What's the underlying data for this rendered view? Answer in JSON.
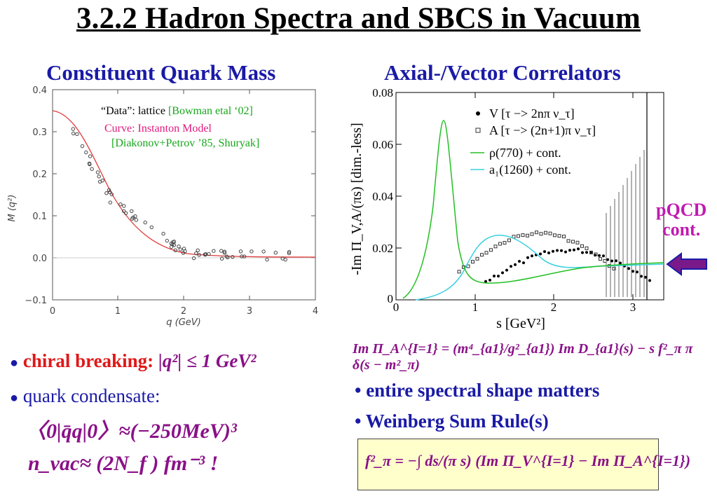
{
  "slide": {
    "title": "3.2.2 Hadron Spectra and SBCS in Vacuum",
    "left_heading": "Constituent Quark Mass",
    "right_heading": "Axial-/Vector Correlators"
  },
  "left_plot": {
    "note_data_prefix": "“Data”: lattice ",
    "note_data_ref": "[Bowman etal ‘02]",
    "note_curve": "Curve: Instanton Model",
    "note_curve_ref": "[Diakonov+Petrov ’85, Shuryak]",
    "ylabel": "M (q²)",
    "xlabel": "q (GeV)",
    "yticks": [
      "0.4",
      "0.3",
      "0.2",
      "0.1",
      "0.0",
      "−0.1"
    ],
    "xticks": [
      "0",
      "1",
      "2",
      "3",
      "4"
    ],
    "colors": {
      "curve": "#e03a3a",
      "points": "#444444"
    }
  },
  "right_plot": {
    "ylabel": "-Im Π_V,A/(πs) [dim.-less]",
    "xlabel": "s [GeV²]",
    "yticks": [
      "0.08",
      "0.06",
      "0.04",
      "0.02",
      "0"
    ],
    "xticks": [
      "0",
      "1",
      "2",
      "3"
    ],
    "legend": [
      "V [τ −> 2nπ ν_τ]",
      "A [τ −> (2n+1)π ν_τ]",
      "ρ(770)  + cont.",
      "a₁(1260) + cont."
    ],
    "side_label_1": "pQCD",
    "side_label_2": "cont.",
    "colors": {
      "rho": "#22c022",
      "a1": "#38d0e0",
      "arrow": "#7a1a8a",
      "label": "#c01ab0"
    }
  },
  "bullets_left": {
    "b1_label": "chiral breaking:",
    "b1_expr": "|q²| ≤ 1 GeV²",
    "b2": "quark condensate:",
    "condensate": "〈0|q̄q|0〉≈(−250MeV)³",
    "nvac": "n_vac≈ (2N_f ) fm⁻³ !"
  },
  "bullets_right": {
    "wsr_eq": "Im Π_A^{I=1} = (m⁴_{a1}/g²_{a1}) Im D_{a1}(s) − s f²_π π δ(s − m²_π)",
    "b1": "• entire spectral shape matters",
    "b2": "• Weinberg Sum Rule(s)",
    "box_eq": "f²_π = −∫ ds/(π s) (Im Π_V^{I=1} − Im Π_A^{I=1})"
  }
}
